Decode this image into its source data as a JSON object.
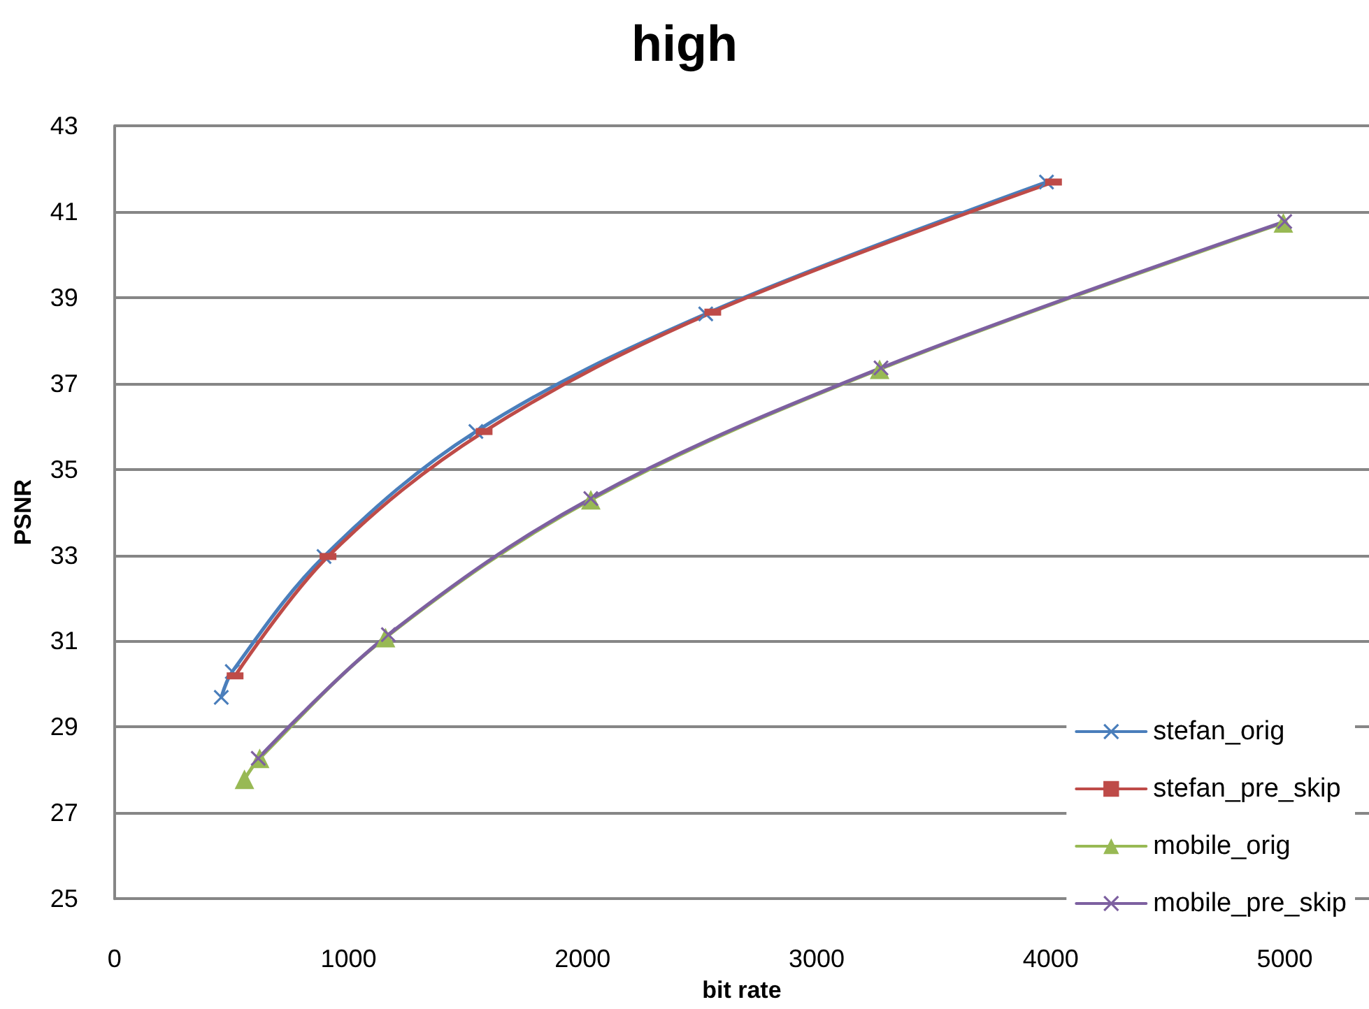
{
  "chart_data": {
    "type": "line",
    "title": "high",
    "xlabel": "bit rate",
    "ylabel": "PSNR",
    "xlim": [
      0,
      5360
    ],
    "xticks": [
      0,
      1000,
      2000,
      3000,
      4000,
      5000
    ],
    "ylim": [
      25,
      43
    ],
    "yticks": [
      25,
      27,
      29,
      31,
      33,
      35,
      37,
      39,
      41,
      43
    ],
    "grid": "y",
    "legend": "bottom right",
    "series": [
      {
        "name": "stefan_orig",
        "color": "#4a7ebb",
        "marker": "cross",
        "x": [
          456,
          503,
          895,
          1544,
          2526,
          3982
        ],
        "values": [
          29.69,
          30.29,
          32.97,
          35.88,
          38.62,
          41.69
        ]
      },
      {
        "name": "stefan_pre_skip",
        "color": "#be4b48",
        "marker": "square",
        "x": [
          515,
          912,
          1579,
          2556,
          4012
        ],
        "values": [
          30.19,
          32.97,
          35.88,
          38.66,
          41.69
        ]
      },
      {
        "name": "mobile_orig",
        "color": "#98b954",
        "marker": "triangle",
        "x": [
          555,
          620,
          1158,
          2035,
          3269,
          4994
        ],
        "values": [
          27.78,
          28.27,
          31.08,
          34.29,
          37.33,
          40.74
        ]
      },
      {
        "name": "mobile_pre_skip",
        "color": "#7d60a0",
        "marker": "cross",
        "x": [
          614,
          1170,
          2035,
          3275,
          5000
        ],
        "values": [
          28.27,
          31.15,
          34.32,
          37.36,
          40.77
        ]
      }
    ]
  }
}
